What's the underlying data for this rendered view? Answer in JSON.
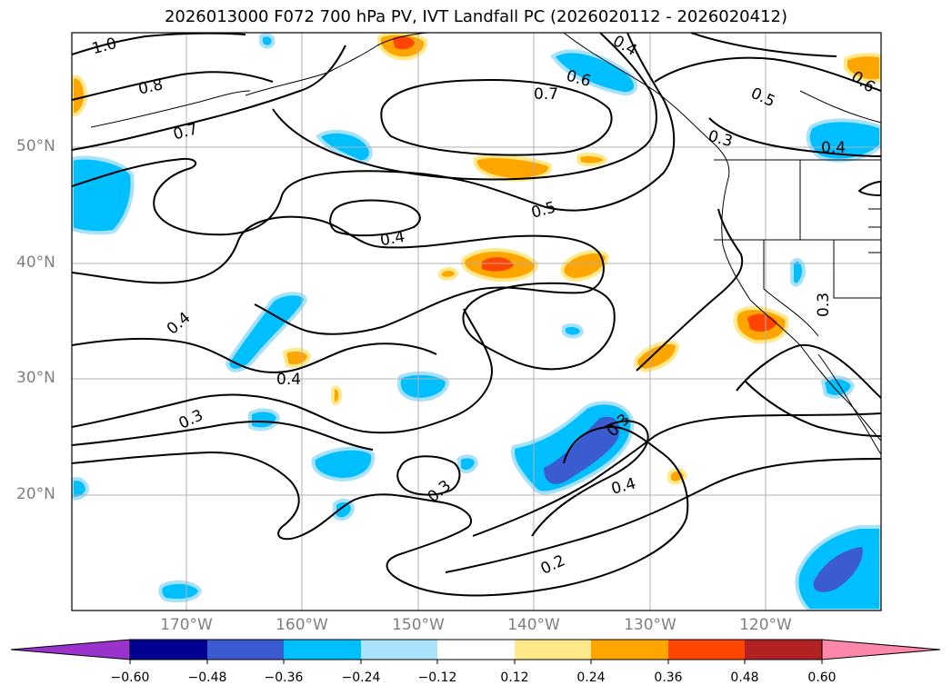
{
  "title": "2026013000 F072 700 hPa PV, IVT Landfall PC (2026020112 - 2026020412)",
  "map": {
    "lat_labels": [
      "50°N",
      "40°N",
      "30°N",
      "20°N"
    ],
    "lon_labels": [
      "170°W",
      "160°W",
      "150°W",
      "140°W",
      "130°W",
      "120°W"
    ],
    "contour_labels": [
      "1.0",
      "0.8",
      "0.7",
      "0.7",
      "0.6",
      "0.5",
      "0.5",
      "0.4",
      "0.4",
      "0.4",
      "0.4",
      "0.3",
      "0.3",
      "0.3",
      "0.3",
      "0.4",
      "0.2",
      "0.4",
      "0.6",
      "0.3"
    ],
    "gridlines": true,
    "shading_colors": {
      "strong_negative": "#3b5bd0",
      "negative": "#00bfff",
      "weak_negative": "#a8e1fb",
      "weak_positive": "#ffe98a",
      "positive": "#ffa500",
      "strong_positive": "#ff4500"
    }
  },
  "colorbar": {
    "tick_labels": [
      "−0.60",
      "−0.48",
      "−0.36",
      "−0.24",
      "−0.12",
      "0.12",
      "0.24",
      "0.36",
      "0.48",
      "0.60"
    ],
    "colors": [
      "#9933cc",
      "#000090",
      "#3b5bd0",
      "#00bfff",
      "#aae2fc",
      "#ffffff",
      "#ffe98a",
      "#ffa500",
      "#ff4500",
      "#b22222",
      "#ff88aa"
    ]
  }
}
